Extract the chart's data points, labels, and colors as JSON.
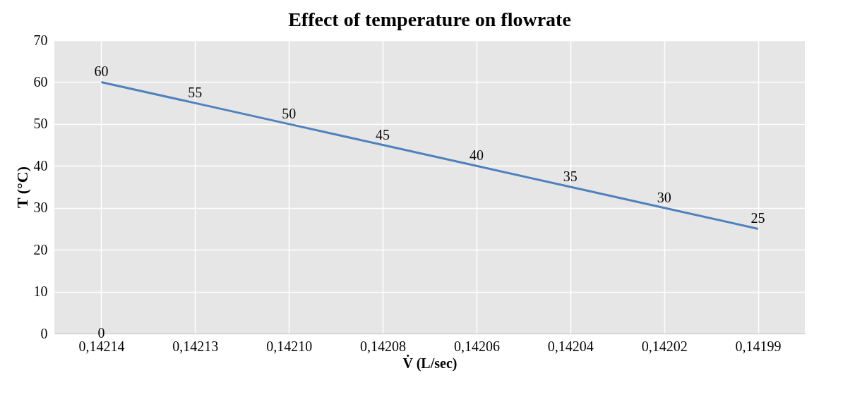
{
  "chart_data": {
    "type": "line",
    "title": "Effect of temperature on flowrate",
    "xlabel": "V̇  (L/sec)",
    "ylabel": "T (°C)",
    "categories": [
      "0,14214",
      "0,14213",
      "0,14210",
      "0,14208",
      "0,14206",
      "0,14204",
      "0,14202",
      "0,14199"
    ],
    "series": [
      {
        "color": "#4f81bd",
        "values": [
          60,
          55,
          50,
          45,
          40,
          35,
          30,
          25
        ]
      }
    ],
    "ylim": [
      0,
      70
    ],
    "yticks": [
      0,
      10,
      20,
      30,
      40,
      50,
      60,
      70
    ],
    "grid": true,
    "data_labels": true,
    "marker": "none",
    "line_style": "solid",
    "annotations": [
      "0"
    ]
  }
}
